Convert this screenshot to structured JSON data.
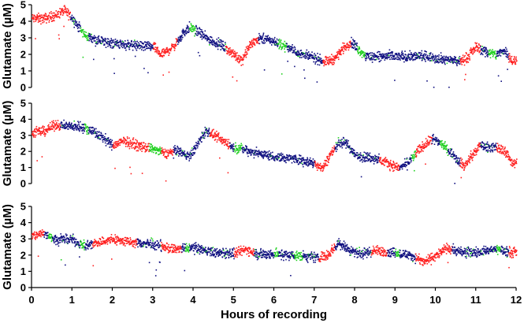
{
  "chart_data": [
    {
      "type": "scatter",
      "title": "",
      "ylabel": "Glutamate  (µM)",
      "xlabel": "",
      "xlim": [
        0,
        12
      ],
      "ylim": [
        0,
        5
      ],
      "y_ticks": [
        "0",
        "1",
        "2",
        "3",
        "4",
        "5"
      ],
      "grid": false,
      "colors": {
        "red": "#ff2020",
        "blue": "#101080",
        "green": "#20d020"
      },
      "trend": [
        [
          0,
          4.2
        ],
        [
          0.3,
          4.2
        ],
        [
          0.6,
          4.4
        ],
        [
          0.8,
          4.7
        ],
        [
          1.0,
          4.2
        ],
        [
          1.3,
          3.2
        ],
        [
          1.6,
          2.9
        ],
        [
          2.0,
          2.7
        ],
        [
          2.5,
          2.6
        ],
        [
          3.0,
          2.5
        ],
        [
          3.2,
          2.0
        ],
        [
          3.5,
          2.5
        ],
        [
          3.7,
          3.2
        ],
        [
          3.9,
          3.7
        ],
        [
          4.1,
          3.4
        ],
        [
          4.4,
          2.9
        ],
        [
          4.7,
          2.6
        ],
        [
          5.0,
          2.0
        ],
        [
          5.2,
          1.7
        ],
        [
          5.4,
          2.6
        ],
        [
          5.6,
          3.0
        ],
        [
          5.9,
          2.9
        ],
        [
          6.2,
          2.6
        ],
        [
          6.6,
          2.1
        ],
        [
          7.0,
          1.8
        ],
        [
          7.3,
          1.6
        ],
        [
          7.5,
          1.8
        ],
        [
          7.7,
          2.4
        ],
        [
          7.9,
          2.8
        ],
        [
          8.1,
          2.3
        ],
        [
          8.3,
          1.9
        ],
        [
          8.8,
          1.9
        ],
        [
          9.3,
          1.9
        ],
        [
          9.8,
          1.9
        ],
        [
          10.3,
          1.7
        ],
        [
          10.6,
          1.6
        ],
        [
          10.8,
          1.9
        ],
        [
          11.0,
          2.5
        ],
        [
          11.2,
          2.2
        ],
        [
          11.5,
          2.0
        ],
        [
          11.7,
          2.3
        ],
        [
          11.9,
          1.6
        ]
      ],
      "red_ranges": [
        [
          0,
          0.95
        ],
        [
          3.0,
          3.6
        ],
        [
          4.8,
          5.6
        ],
        [
          7.2,
          7.9
        ],
        [
          10.6,
          11.1
        ],
        [
          11.8,
          12
        ]
      ],
      "green_ranges": [
        [
          1.2,
          1.4
        ],
        [
          3.9,
          4.05
        ],
        [
          6.1,
          6.3
        ],
        [
          8.05,
          8.25
        ],
        [
          11.3,
          11.5
        ]
      ]
    },
    {
      "type": "scatter",
      "title": "",
      "ylabel": "Glutamate  (µM)",
      "xlabel": "",
      "xlim": [
        0,
        12
      ],
      "ylim": [
        0,
        5
      ],
      "y_ticks": [
        "0",
        "1",
        "2",
        "3",
        "4",
        "5"
      ],
      "grid": false,
      "colors": {
        "red": "#ff2020",
        "blue": "#101080",
        "green": "#20d020"
      },
      "trend": [
        [
          0,
          3.2
        ],
        [
          0.3,
          3.3
        ],
        [
          0.6,
          3.7
        ],
        [
          0.9,
          3.6
        ],
        [
          1.2,
          3.6
        ],
        [
          1.5,
          3.3
        ],
        [
          1.8,
          2.8
        ],
        [
          2.0,
          2.4
        ],
        [
          2.3,
          2.7
        ],
        [
          2.6,
          2.4
        ],
        [
          3.0,
          2.2
        ],
        [
          3.3,
          1.9
        ],
        [
          3.6,
          2.1
        ],
        [
          3.9,
          1.7
        ],
        [
          4.1,
          2.5
        ],
        [
          4.3,
          3.3
        ],
        [
          4.6,
          2.9
        ],
        [
          5.0,
          2.3
        ],
        [
          5.5,
          2.0
        ],
        [
          6.0,
          1.7
        ],
        [
          6.5,
          1.6
        ],
        [
          7.0,
          1.3
        ],
        [
          7.2,
          1.0
        ],
        [
          7.4,
          1.9
        ],
        [
          7.6,
          2.6
        ],
        [
          7.8,
          2.5
        ],
        [
          8.0,
          1.8
        ],
        [
          8.5,
          1.6
        ],
        [
          8.8,
          1.3
        ],
        [
          9.1,
          1.0
        ],
        [
          9.3,
          1.3
        ],
        [
          9.6,
          2.2
        ],
        [
          9.9,
          2.8
        ],
        [
          10.1,
          2.6
        ],
        [
          10.4,
          1.9
        ],
        [
          10.7,
          1.1
        ],
        [
          10.9,
          1.8
        ],
        [
          11.1,
          2.4
        ],
        [
          11.4,
          2.3
        ],
        [
          11.7,
          2.1
        ],
        [
          11.9,
          1.3
        ]
      ],
      "red_ranges": [
        [
          0,
          0.7
        ],
        [
          2.0,
          2.9
        ],
        [
          3.2,
          3.5
        ],
        [
          4.4,
          4.9
        ],
        [
          7.0,
          7.5
        ],
        [
          8.6,
          9.1
        ],
        [
          9.5,
          9.9
        ],
        [
          10.6,
          11.1
        ],
        [
          11.5,
          12
        ]
      ],
      "green_ranges": [
        [
          1.3,
          1.4
        ],
        [
          2.9,
          3.2
        ],
        [
          5.0,
          5.2
        ],
        [
          9.4,
          9.5
        ],
        [
          10.1,
          10.3
        ],
        [
          11.5,
          11.6
        ]
      ]
    },
    {
      "type": "scatter",
      "title": "",
      "ylabel": "Glutamate  (µM)",
      "xlabel": "Hours of recording",
      "xlim": [
        0,
        12
      ],
      "ylim": [
        0,
        5
      ],
      "x_ticks": [
        "0",
        "1",
        "2",
        "3",
        "4",
        "5",
        "6",
        "7",
        "8",
        "9",
        "10",
        "11",
        "12"
      ],
      "y_ticks": [
        "0",
        "1",
        "2",
        "3",
        "4",
        "5"
      ],
      "grid": false,
      "colors": {
        "red": "#ff2020",
        "blue": "#101080",
        "green": "#20d020"
      },
      "trend": [
        [
          0,
          3.2
        ],
        [
          0.3,
          3.4
        ],
        [
          0.6,
          3.0
        ],
        [
          1.0,
          3.0
        ],
        [
          1.3,
          2.6
        ],
        [
          1.6,
          2.8
        ],
        [
          2.0,
          3.0
        ],
        [
          2.5,
          2.8
        ],
        [
          3.0,
          2.7
        ],
        [
          3.5,
          2.4
        ],
        [
          4.0,
          2.5
        ],
        [
          4.5,
          2.2
        ],
        [
          5.0,
          2.1
        ],
        [
          5.3,
          2.4
        ],
        [
          5.6,
          2.1
        ],
        [
          6.0,
          2.1
        ],
        [
          6.5,
          2.0
        ],
        [
          7.0,
          1.9
        ],
        [
          7.3,
          2.0
        ],
        [
          7.6,
          2.8
        ],
        [
          7.9,
          2.3
        ],
        [
          8.2,
          2.1
        ],
        [
          8.5,
          2.3
        ],
        [
          9.0,
          2.2
        ],
        [
          9.4,
          2.0
        ],
        [
          9.7,
          1.6
        ],
        [
          10.0,
          2.0
        ],
        [
          10.3,
          2.5
        ],
        [
          10.6,
          2.2
        ],
        [
          11.0,
          2.2
        ],
        [
          11.5,
          2.4
        ],
        [
          11.9,
          2.2
        ]
      ],
      "red_ranges": [
        [
          0,
          0.3
        ],
        [
          1.5,
          2.6
        ],
        [
          3.2,
          3.7
        ],
        [
          5.0,
          5.5
        ],
        [
          7.1,
          7.5
        ],
        [
          8.4,
          8.8
        ],
        [
          9.5,
          10.4
        ],
        [
          11.8,
          12
        ]
      ],
      "green_ranges": [
        [
          0.4,
          0.5
        ],
        [
          1.2,
          1.3
        ],
        [
          3.8,
          3.9
        ],
        [
          6.0,
          6.1
        ],
        [
          6.5,
          6.7
        ],
        [
          9.0,
          9.1
        ],
        [
          9.9,
          10.0
        ],
        [
          11.5,
          11.6
        ]
      ]
    }
  ]
}
